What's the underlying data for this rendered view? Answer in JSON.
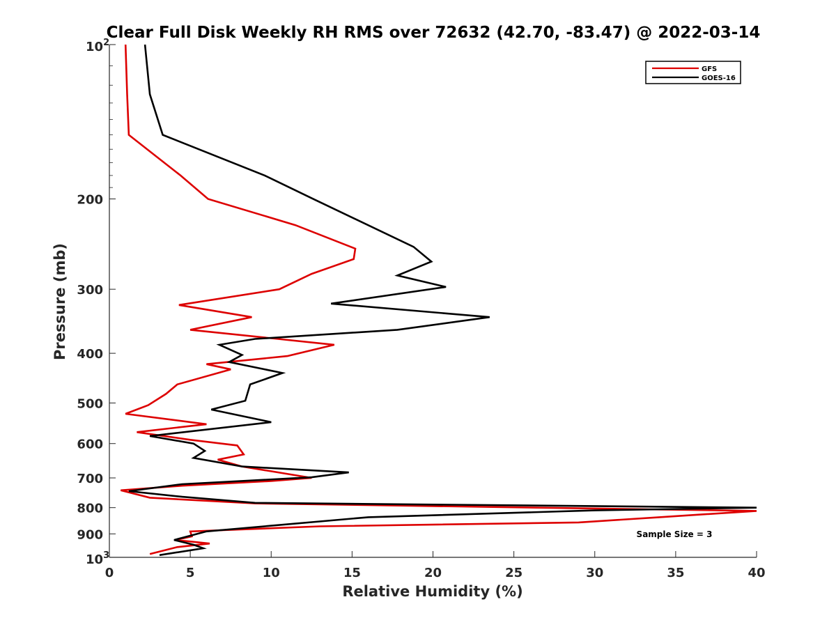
{
  "chart_data": {
    "type": "line",
    "title": "Clear Full Disk Weekly RH RMS over 72632 (42.70, -83.47) @ 2022-03-14",
    "xlabel": "Relative Humidity (%)",
    "ylabel": "Pressure (mb)",
    "xlim": [
      0,
      40
    ],
    "ylim": [
      100,
      1000
    ],
    "y_scale": "log",
    "y_reversed": true,
    "x_ticks": [
      "0",
      "5",
      "10",
      "15",
      "20",
      "25",
      "30",
      "35",
      "40"
    ],
    "y_ticks": [
      {
        "value": 100,
        "base": "10",
        "exp": "2"
      },
      {
        "value": 200,
        "label": "200"
      },
      {
        "value": 300,
        "label": "300"
      },
      {
        "value": 400,
        "label": "400"
      },
      {
        "value": 500,
        "label": "500"
      },
      {
        "value": 600,
        "label": "600"
      },
      {
        "value": 700,
        "label": "700"
      },
      {
        "value": 800,
        "label": "800"
      },
      {
        "value": 900,
        "label": "900"
      },
      {
        "value": 1000,
        "base": "10",
        "exp": "3"
      }
    ],
    "grid": false,
    "legend_position": "top-right",
    "annotation": "Sample Size = 3",
    "series": [
      {
        "name": "GFS",
        "color": "#dd0000",
        "points": [
          [
            1.0,
            100
          ],
          [
            1.1,
            125
          ],
          [
            1.2,
            150
          ],
          [
            4.4,
            180
          ],
          [
            6.1,
            200
          ],
          [
            11.5,
            225
          ],
          [
            15.2,
            250
          ],
          [
            15.1,
            262
          ],
          [
            12.5,
            280
          ],
          [
            10.5,
            300
          ],
          [
            4.3,
            322
          ],
          [
            8.8,
            340
          ],
          [
            5.0,
            360
          ],
          [
            13.9,
            385
          ],
          [
            11.0,
            405
          ],
          [
            6.0,
            420
          ],
          [
            7.5,
            430
          ],
          [
            4.2,
            460
          ],
          [
            3.5,
            480
          ],
          [
            2.4,
            505
          ],
          [
            1.0,
            525
          ],
          [
            6.0,
            550
          ],
          [
            1.7,
            570
          ],
          [
            5.0,
            590
          ],
          [
            7.9,
            605
          ],
          [
            8.3,
            630
          ],
          [
            6.7,
            645
          ],
          [
            8.2,
            665
          ],
          [
            12.5,
            700
          ],
          [
            10.0,
            710
          ],
          [
            4.5,
            725
          ],
          [
            0.7,
            740
          ],
          [
            2.5,
            765
          ],
          [
            9.0,
            785
          ],
          [
            40,
            812
          ],
          [
            34.0,
            835
          ],
          [
            29.0,
            855
          ],
          [
            13.0,
            870
          ],
          [
            5.0,
            890
          ],
          [
            5.1,
            910
          ],
          [
            4.1,
            925
          ],
          [
            6.2,
            940
          ],
          [
            4.2,
            955
          ],
          [
            2.5,
            985
          ]
        ]
      },
      {
        "name": "GOES-16",
        "color": "#000000",
        "points": [
          [
            2.2,
            100
          ],
          [
            2.5,
            125
          ],
          [
            3.3,
            150
          ],
          [
            9.6,
            180
          ],
          [
            12.6,
            200
          ],
          [
            18.8,
            248
          ],
          [
            19.9,
            265
          ],
          [
            17.8,
            282
          ],
          [
            20.8,
            297
          ],
          [
            13.7,
            320
          ],
          [
            23.5,
            340
          ],
          [
            17.8,
            360
          ],
          [
            9.0,
            375
          ],
          [
            6.8,
            385
          ],
          [
            8.2,
            403
          ],
          [
            7.4,
            416
          ],
          [
            10.7,
            437
          ],
          [
            8.7,
            460
          ],
          [
            8.4,
            495
          ],
          [
            6.3,
            515
          ],
          [
            10.0,
            545
          ],
          [
            2.5,
            580
          ],
          [
            5.2,
            600
          ],
          [
            5.9,
            620
          ],
          [
            5.2,
            640
          ],
          [
            8.2,
            665
          ],
          [
            14.8,
            683
          ],
          [
            12.5,
            698
          ],
          [
            4.5,
            720
          ],
          [
            1.2,
            743
          ],
          [
            4.5,
            762
          ],
          [
            9.0,
            783
          ],
          [
            40,
            800
          ],
          [
            30.0,
            810
          ],
          [
            16.0,
            835
          ],
          [
            6.0,
            890
          ],
          [
            4.0,
            925
          ],
          [
            5.2,
            945
          ],
          [
            5.8,
            960
          ],
          [
            3.1,
            990
          ]
        ]
      }
    ]
  }
}
